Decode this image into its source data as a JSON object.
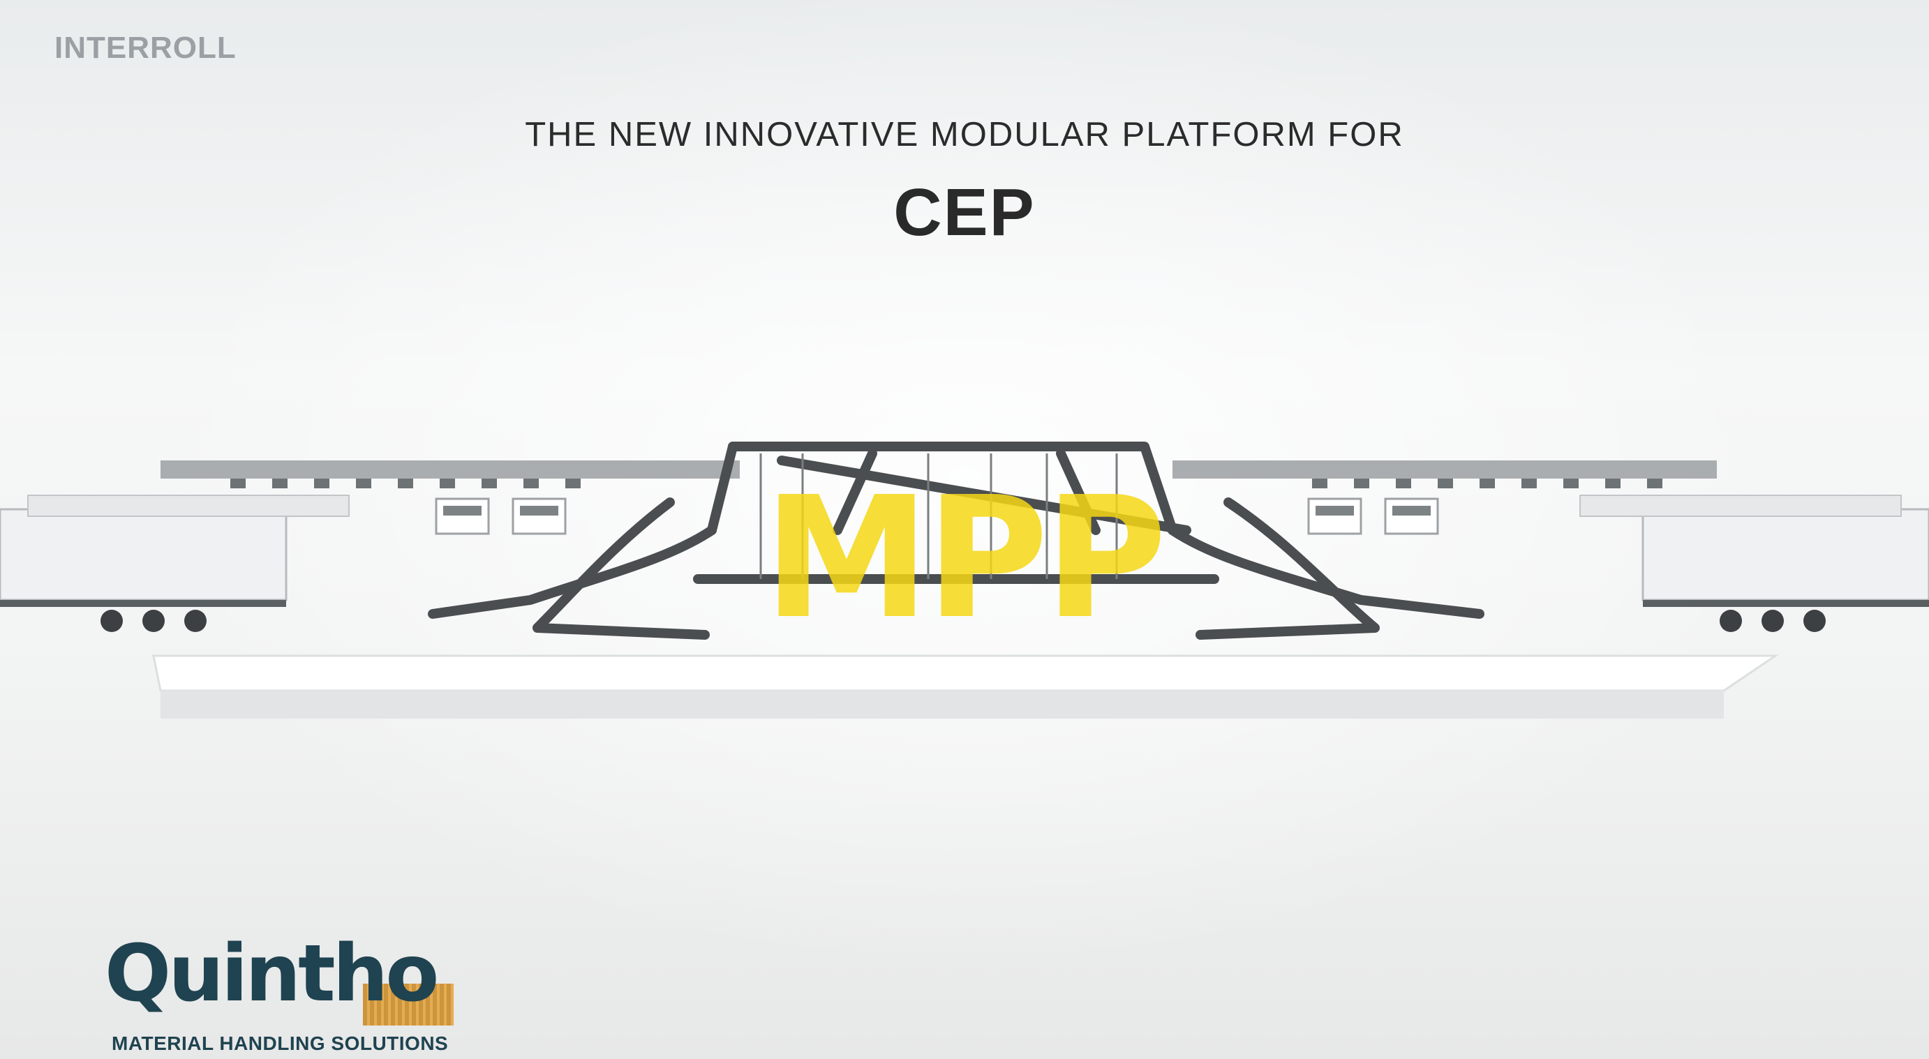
{
  "brand": {
    "name": "INTERROLL"
  },
  "headline": "THE NEW INNOVATIVE MODULAR PLATFORM FOR",
  "subject": "CEP",
  "overlay_text": "MPP",
  "dealer": {
    "name": "Quintho",
    "tagline": "MATERIAL HANDLING SOLUTIONS"
  },
  "colors": {
    "overlay_yellow": "#f5d714",
    "dealer_teal": "#1f4350",
    "dealer_orange": "#d8962e"
  }
}
